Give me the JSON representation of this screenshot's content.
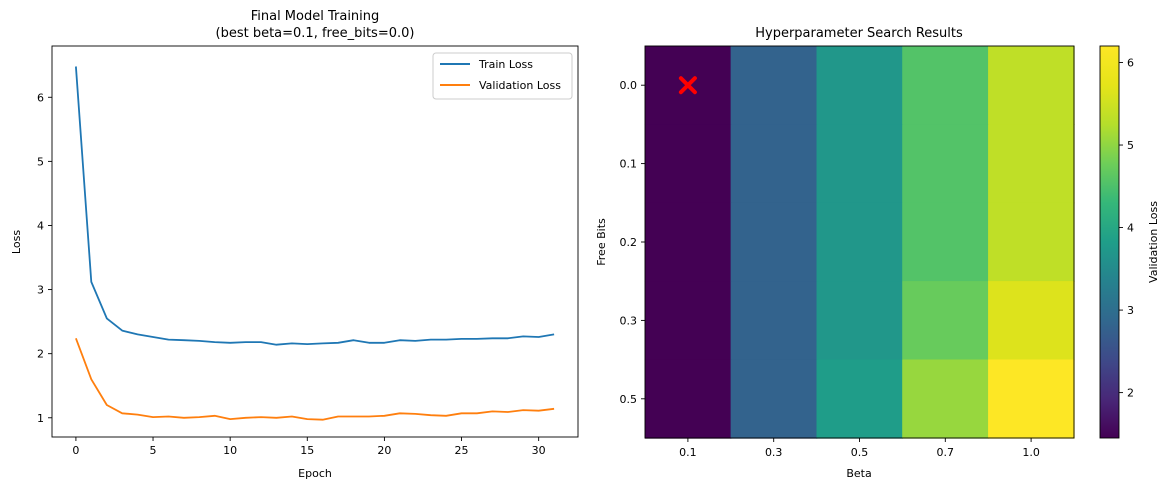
{
  "chart_data": [
    {
      "type": "line",
      "title": "Final Model Training\n(best beta=0.1, free_bits=0.0)",
      "xlabel": "Epoch",
      "ylabel": "Loss",
      "xlim": [
        -1.55,
        32.55
      ],
      "ylim": [
        0.7,
        6.8
      ],
      "xticks": [
        0,
        5,
        10,
        15,
        20,
        25,
        30
      ],
      "yticks": [
        1,
        2,
        3,
        4,
        5,
        6
      ],
      "grid": false,
      "legend": "top-right",
      "x": [
        0,
        1,
        2,
        3,
        4,
        5,
        6,
        7,
        8,
        9,
        10,
        11,
        12,
        13,
        14,
        15,
        16,
        17,
        18,
        19,
        20,
        21,
        22,
        23,
        24,
        25,
        26,
        27,
        28,
        29,
        30,
        31
      ],
      "series": [
        {
          "name": "Train Loss",
          "color": "#1f77b4",
          "values": [
            6.48,
            3.12,
            2.55,
            2.36,
            2.3,
            2.26,
            2.22,
            2.21,
            2.2,
            2.18,
            2.17,
            2.18,
            2.18,
            2.14,
            2.16,
            2.15,
            2.16,
            2.17,
            2.21,
            2.17,
            2.17,
            2.21,
            2.2,
            2.22,
            2.22,
            2.23,
            2.23,
            2.24,
            2.24,
            2.27,
            2.26,
            2.3
          ]
        },
        {
          "name": "Validation Loss",
          "color": "#ff7f0e",
          "values": [
            2.24,
            1.6,
            1.2,
            1.07,
            1.05,
            1.01,
            1.02,
            1.0,
            1.01,
            1.03,
            0.98,
            1.0,
            1.01,
            1.0,
            1.02,
            0.98,
            0.97,
            1.02,
            1.02,
            1.02,
            1.03,
            1.07,
            1.06,
            1.04,
            1.03,
            1.07,
            1.07,
            1.1,
            1.09,
            1.12,
            1.11,
            1.14
          ]
        }
      ]
    },
    {
      "type": "heatmap",
      "title": "Hyperparameter Search Results",
      "xlabel": "Beta",
      "ylabel": "Free Bits",
      "x_categories": [
        "0.1",
        "0.3",
        "0.5",
        "0.7",
        "1.0"
      ],
      "y_categories": [
        "0.0",
        "0.1",
        "0.2",
        "0.3",
        "0.5"
      ],
      "colorbar_label": "Validation Loss",
      "colorbar_ticks": [
        2,
        3,
        4,
        5,
        6
      ],
      "vmin": 1.45,
      "vmax": 6.2,
      "colormap": "viridis",
      "values": [
        [
          1.45,
          2.8,
          3.7,
          4.55,
          5.35
        ],
        [
          1.45,
          2.8,
          3.7,
          4.55,
          5.35
        ],
        [
          1.45,
          2.8,
          3.7,
          4.55,
          5.35
        ],
        [
          1.45,
          2.8,
          3.7,
          4.72,
          5.65
        ],
        [
          1.45,
          2.8,
          3.8,
          5.05,
          6.2
        ]
      ],
      "best_marker": {
        "beta": "0.1",
        "free_bits": "0.0",
        "color": "#ff0000"
      }
    }
  ]
}
